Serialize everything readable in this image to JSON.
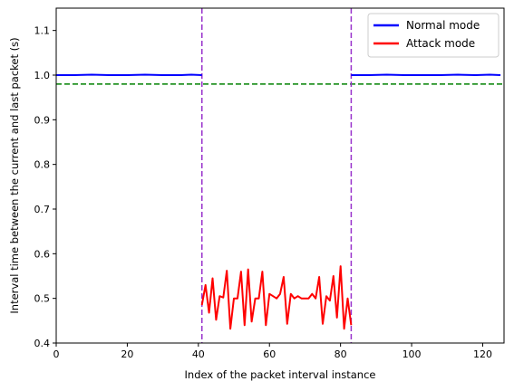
{
  "chart_data": {
    "type": "line",
    "xlabel": "Index of the packet interval instance",
    "ylabel": "Interval time between the current and last packet (s)",
    "xlim": [
      0,
      126
    ],
    "ylim": [
      0.4,
      1.15
    ],
    "xticks": [
      0,
      20,
      40,
      60,
      80,
      100,
      120
    ],
    "yticks": [
      0.4,
      0.5,
      0.6,
      0.7,
      0.8,
      0.9,
      1.0,
      1.1
    ],
    "grid": false,
    "legend_position": "top-right",
    "series": [
      {
        "name": "Normal mode",
        "color": "#0000ff",
        "segments": [
          {
            "x": [
              0,
              5,
              10,
              15,
              20,
              25,
              30,
              35,
              38,
              41
            ],
            "y": [
              1.0,
              1.0,
              1.001,
              1.0,
              1.0,
              1.001,
              1.0,
              1.0,
              1.001,
              1.0
            ]
          },
          {
            "x": [
              83,
              88,
              93,
              98,
              103,
              108,
              113,
              118,
              122,
              125
            ],
            "y": [
              1.0,
              1.0,
              1.001,
              1.0,
              1.0,
              1.0,
              1.001,
              1.0,
              1.001,
              1.0
            ]
          }
        ]
      },
      {
        "name": "Attack mode",
        "color": "#ff0000",
        "segments": [
          {
            "x": [
              41,
              42,
              43,
              44,
              45,
              46,
              47,
              48,
              49,
              50,
              51,
              52,
              53,
              54,
              55,
              56,
              57,
              58,
              59,
              60,
              61,
              62,
              63,
              64,
              65,
              66,
              67,
              68,
              69,
              70,
              71,
              72,
              73,
              74,
              75,
              76,
              77,
              78,
              79,
              80,
              81,
              82,
              83
            ],
            "y": [
              0.485,
              0.53,
              0.468,
              0.545,
              0.452,
              0.505,
              0.502,
              0.562,
              0.432,
              0.5,
              0.5,
              0.56,
              0.44,
              0.565,
              0.448,
              0.5,
              0.5,
              0.56,
              0.44,
              0.51,
              0.505,
              0.5,
              0.51,
              0.548,
              0.443,
              0.51,
              0.5,
              0.505,
              0.5,
              0.5,
              0.5,
              0.51,
              0.5,
              0.548,
              0.443,
              0.505,
              0.495,
              0.55,
              0.457,
              0.572,
              0.432,
              0.5,
              0.44
            ]
          }
        ]
      }
    ],
    "reference_lines": [
      {
        "orientation": "horizontal",
        "value": 0.98,
        "color": "#008000",
        "style": "dashed"
      },
      {
        "orientation": "vertical",
        "value": 41,
        "color": "#9932cc",
        "style": "dashed"
      },
      {
        "orientation": "vertical",
        "value": 83,
        "color": "#9932cc",
        "style": "dashed"
      }
    ]
  }
}
